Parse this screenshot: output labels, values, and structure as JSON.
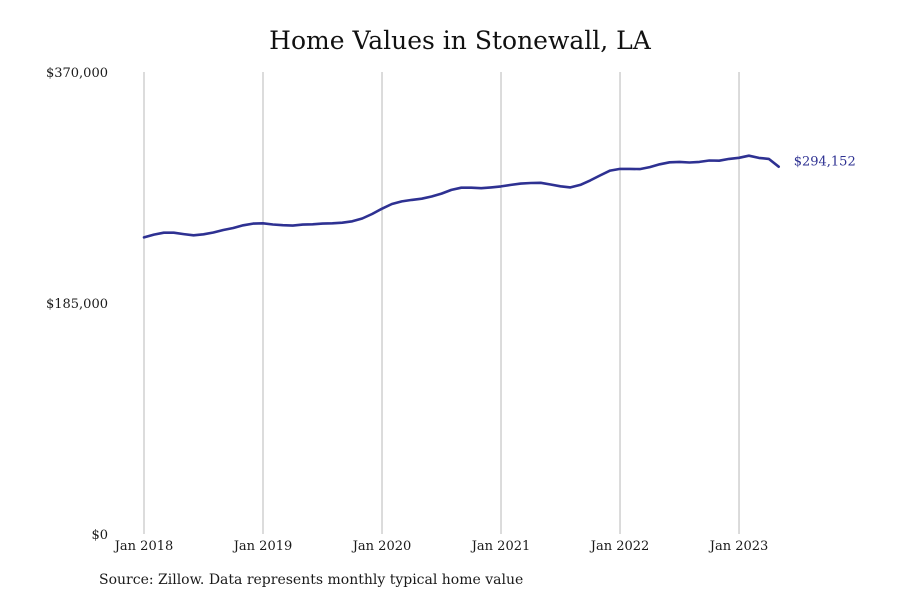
{
  "chart_data": {
    "type": "line",
    "title": "Home Values in Stonewall, LA",
    "xlabel": "",
    "ylabel": "",
    "ylim": [
      0,
      370000
    ],
    "y_ticks": [
      {
        "value": 0,
        "label": "$0"
      },
      {
        "value": 185000,
        "label": "$185,000"
      },
      {
        "value": 370000,
        "label": "$370,000"
      }
    ],
    "x_ticks": [
      {
        "value": "2018-01",
        "label": "Jan 2018"
      },
      {
        "value": "2019-01",
        "label": "Jan 2019"
      },
      {
        "value": "2020-01",
        "label": "Jan 2020"
      },
      {
        "value": "2021-01",
        "label": "Jan 2021"
      },
      {
        "value": "2022-01",
        "label": "Jan 2022"
      },
      {
        "value": "2023-01",
        "label": "Jan 2023"
      }
    ],
    "grid": {
      "vertical": true,
      "horizontal": false
    },
    "line_color": "#2e3192",
    "series": [
      {
        "name": "",
        "x": [
          "2018-01",
          "2018-02",
          "2018-03",
          "2018-04",
          "2018-05",
          "2018-06",
          "2018-07",
          "2018-08",
          "2018-09",
          "2018-10",
          "2018-11",
          "2018-12",
          "2019-01",
          "2019-02",
          "2019-03",
          "2019-04",
          "2019-05",
          "2019-06",
          "2019-07",
          "2019-08",
          "2019-09",
          "2019-10",
          "2019-11",
          "2019-12",
          "2020-01",
          "2020-02",
          "2020-03",
          "2020-04",
          "2020-05",
          "2020-06",
          "2020-07",
          "2020-08",
          "2020-09",
          "2020-10",
          "2020-11",
          "2020-12",
          "2021-01",
          "2021-02",
          "2021-03",
          "2021-04",
          "2021-05",
          "2021-06",
          "2021-07",
          "2021-08",
          "2021-09",
          "2021-10",
          "2021-11",
          "2021-12",
          "2022-01",
          "2022-02",
          "2022-03",
          "2022-04",
          "2022-05",
          "2022-06",
          "2022-07",
          "2022-08",
          "2022-09",
          "2022-10",
          "2022-11",
          "2022-12",
          "2023-01",
          "2023-02",
          "2023-03",
          "2023-04",
          "2023-05"
        ],
        "values": [
          237500,
          239800,
          241300,
          241300,
          240200,
          239200,
          240000,
          241500,
          243500,
          245100,
          247200,
          248600,
          248800,
          247900,
          247300,
          247000,
          247800,
          248000,
          248600,
          248800,
          249300,
          250400,
          252700,
          256300,
          260500,
          264300,
          266400,
          267600,
          268500,
          270300,
          272600,
          275600,
          277300,
          277300,
          276900,
          277600,
          278400,
          279600,
          280600,
          281100,
          281300,
          279900,
          278500,
          277600,
          279600,
          283200,
          287200,
          291000,
          292400,
          292400,
          292200,
          293800,
          296100,
          297700,
          298000,
          297500,
          298000,
          299100,
          299000,
          300400,
          301300,
          303000,
          301200,
          300400,
          294152
        ]
      }
    ],
    "end_label": "$294,152"
  },
  "source_note": "Source: Zillow. Data represents monthly typical home value"
}
